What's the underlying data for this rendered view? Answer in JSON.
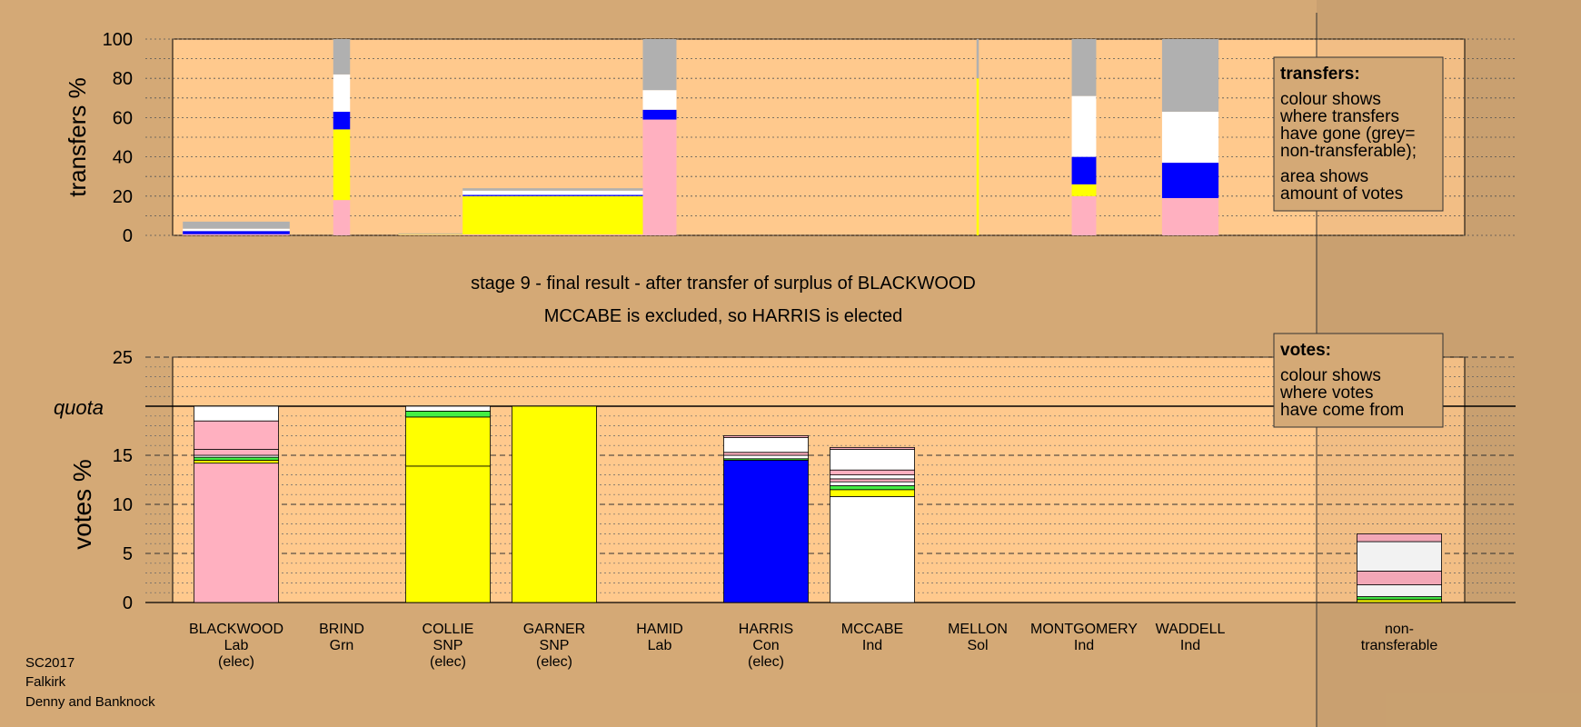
{
  "colors": {
    "background": "#d4a976",
    "plot_bg": "#ffc98d",
    "Lab": "#ffb0c0",
    "Grn": "#44ee44",
    "SNP": "#ffff00",
    "Con": "#0000ff",
    "Ind": "#ffffff",
    "Sol": "#ff8800",
    "nontransferable": "#b0b0b0"
  },
  "caption": {
    "line1": "stage 9 - final result - after transfer of surplus of BLACKWOOD",
    "line2": "MCCABE is excluded, so HARRIS is elected"
  },
  "footer": {
    "election": "SC2017",
    "council": "Falkirk",
    "ward": "Denny and Banknock"
  },
  "legend_transfers": {
    "title": "transfers:",
    "lines1": [
      "colour shows",
      "where transfers",
      "have gone (grey=",
      "non-transferable);"
    ],
    "lines2": [
      "area shows",
      "amount of votes"
    ]
  },
  "legend_votes": {
    "title": "votes:",
    "lines": [
      "colour shows",
      "where votes",
      "have come from"
    ]
  },
  "chart_data": [
    {
      "type": "bar",
      "name": "transfers",
      "ylabel": "transfers %",
      "ylim": [
        0,
        100
      ],
      "yticks": [
        0,
        20,
        40,
        60,
        80,
        100
      ],
      "grid": true,
      "columns": [
        {
          "candidate": "BLACKWOOD",
          "width_share": 0.07,
          "segments": [
            {
              "party": "Lab",
              "value": 0.6
            },
            {
              "party": "Con",
              "value": 1.6
            },
            {
              "party": "Ind",
              "value": 1.2
            },
            {
              "party": "nontransferable",
              "value": 3.6
            }
          ]
        },
        {
          "candidate": "BRIND",
          "width_share": 0.011,
          "segments": [
            {
              "party": "Lab",
              "value": 18
            },
            {
              "party": "SNP",
              "value": 36
            },
            {
              "party": "Con",
              "value": 9
            },
            {
              "party": "Ind",
              "value": 19
            },
            {
              "party": "nontransferable",
              "value": 18
            }
          ]
        },
        {
          "candidate": "COLLIE",
          "width_share": 0.065,
          "segments": [
            {
              "party": "Lab",
              "value": 0.3
            },
            {
              "party": "SNP",
              "value": 0.3
            },
            {
              "party": "nontransferable",
              "value": 0.4
            }
          ]
        },
        {
          "candidate": "GARNER",
          "width_share": 0.12,
          "segments": [
            {
              "party": "Lab",
              "value": 0.5
            },
            {
              "party": "SNP",
              "value": 19.5
            },
            {
              "party": "Con",
              "value": 0.6
            },
            {
              "party": "Ind",
              "value": 2.2
            },
            {
              "party": "nontransferable",
              "value": 1.2
            }
          ]
        },
        {
          "candidate": "HAMID",
          "width_share": 0.022,
          "segments": [
            {
              "party": "Lab",
              "value": 59
            },
            {
              "party": "Con",
              "value": 5
            },
            {
              "party": "Ind",
              "value": 10
            },
            {
              "party": "nontransferable",
              "value": 26
            }
          ]
        },
        {
          "candidate": "HARRIS",
          "width_share": 0,
          "segments": []
        },
        {
          "candidate": "MCCABE",
          "width_share": 0,
          "segments": []
        },
        {
          "candidate": "MELLON",
          "width_share": 0.0015,
          "segments": [
            {
              "party": "SNP",
              "value": 80
            },
            {
              "party": "nontransferable",
              "value": 20
            }
          ]
        },
        {
          "candidate": "MONTGOMERY",
          "width_share": 0.016,
          "segments": [
            {
              "party": "Lab",
              "value": 20
            },
            {
              "party": "SNP",
              "value": 6
            },
            {
              "party": "Con",
              "value": 14
            },
            {
              "party": "Ind",
              "value": 31
            },
            {
              "party": "nontransferable",
              "value": 29
            }
          ]
        },
        {
          "candidate": "WADDELL",
          "width_share": 0.037,
          "segments": [
            {
              "party": "Lab",
              "value": 19
            },
            {
              "party": "Con",
              "value": 18
            },
            {
              "party": "Ind",
              "value": 26
            },
            {
              "party": "nontransferable",
              "value": 37
            }
          ]
        }
      ]
    },
    {
      "type": "bar",
      "name": "votes",
      "ylabel": "votes %",
      "ylim": [
        0,
        25
      ],
      "yticks": [
        0,
        5,
        10,
        15,
        20,
        25
      ],
      "quota": 20,
      "quota_label": "quota",
      "grid": true,
      "columns": [
        {
          "candidate": "BLACKWOOD",
          "party": "Lab",
          "elected": "(elec)",
          "segments": [
            {
              "party": "Lab",
              "value": 14.2
            },
            {
              "party": "SNP",
              "value": 0.3
            },
            {
              "party": "Grn",
              "value": 0.3
            },
            {
              "party": "Ind",
              "value": 0.2
            },
            {
              "party": "Lab",
              "value": 0.6
            },
            {
              "party": "Lab",
              "value": 2.9
            },
            {
              "party": "Ind",
              "value": 1.5
            }
          ]
        },
        {
          "candidate": "BRIND",
          "party": "Grn",
          "elected": "",
          "segments": []
        },
        {
          "candidate": "COLLIE",
          "party": "SNP",
          "elected": "(elec)",
          "segments": [
            {
              "party": "SNP",
              "value": 13.9
            },
            {
              "party": "SNP",
              "value": 5.0
            },
            {
              "party": "Grn",
              "value": 0.6
            },
            {
              "party": "Ind",
              "value": 0.5
            }
          ]
        },
        {
          "candidate": "GARNER",
          "party": "SNP",
          "elected": "(elec)",
          "segments": [
            {
              "party": "SNP",
              "value": 20.0
            }
          ]
        },
        {
          "candidate": "HAMID",
          "party": "Lab",
          "elected": "",
          "segments": []
        },
        {
          "candidate": "HARRIS",
          "party": "Con",
          "elected": "(elec)",
          "segments": [
            {
              "party": "Con",
              "value": 14.5
            },
            {
              "party": "Grn",
              "value": 0.15
            },
            {
              "party": "Ind",
              "value": 0.35
            },
            {
              "party": "Lab",
              "value": 0.3
            },
            {
              "party": "Ind",
              "value": 1.5
            },
            {
              "party": "Lab",
              "value": 0.2
            }
          ]
        },
        {
          "candidate": "MCCABE",
          "party": "Ind",
          "elected": "",
          "segments": [
            {
              "party": "Ind",
              "value": 10.8
            },
            {
              "party": "SNP",
              "value": 0.7
            },
            {
              "party": "Grn",
              "value": 0.4
            },
            {
              "party": "Ind",
              "value": 0.4
            },
            {
              "party": "Lab",
              "value": 0.3
            },
            {
              "party": "Ind",
              "value": 0.4
            },
            {
              "party": "Lab",
              "value": 0.5
            },
            {
              "party": "Ind",
              "value": 2.1
            },
            {
              "party": "Lab",
              "value": 0.2
            }
          ]
        },
        {
          "candidate": "MELLON",
          "party": "Sol",
          "elected": "",
          "segments": []
        },
        {
          "candidate": "MONTGOMERY",
          "party": "Ind",
          "elected": "",
          "segments": []
        },
        {
          "candidate": "WADDELL",
          "party": "Ind",
          "elected": "",
          "segments": []
        },
        {
          "candidate": "non-",
          "party": "transferable",
          "elected": "",
          "segments": [
            {
              "party": "SNP",
              "value": 0.3
            },
            {
              "party": "Grn",
              "value": 0.3
            },
            {
              "party": "Ind",
              "value": 1.2
            },
            {
              "party": "Lab",
              "value": 1.4
            },
            {
              "party": "Ind",
              "value": 3.0
            },
            {
              "party": "Lab",
              "value": 0.8
            }
          ]
        }
      ]
    }
  ]
}
